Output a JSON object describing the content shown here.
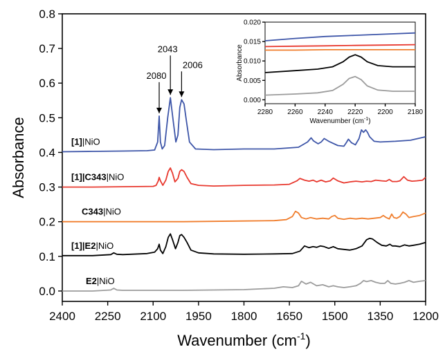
{
  "chart_data": [
    {
      "type": "line",
      "title": "",
      "xlabel": "Wavenumber (cm",
      "xlabel_sup": "-1",
      "xlabel_end": ")",
      "ylabel": "Absorbance",
      "xlim": [
        2400,
        1200
      ],
      "ylim": [
        -0.03,
        0.8
      ],
      "x_ticks": [
        2400,
        2250,
        2100,
        1950,
        1800,
        1650,
        1500,
        1350,
        1200
      ],
      "x_tick_labels": [
        "2400",
        "2250",
        "2100",
        "1950",
        "1800",
        "1650",
        "1500",
        "1350",
        "1200"
      ],
      "y_ticks": [
        0.0,
        0.1,
        0.2,
        0.3,
        0.4,
        0.5,
        0.6,
        0.7,
        0.8
      ],
      "y_tick_labels": [
        "0.0",
        "0.1",
        "0.2",
        "0.3",
        "0.4",
        "0.5",
        "0.6",
        "0.7",
        "0.8"
      ],
      "grid": false,
      "series": [
        {
          "label_bold": "[1]",
          "label_rest": "|NiO",
          "color": "#3d55a8",
          "x": [
            2400,
            2300,
            2200,
            2120,
            2095,
            2085,
            2080,
            2076,
            2070,
            2062,
            2052,
            2043,
            2035,
            2025,
            2018,
            2012,
            2006,
            1998,
            1990,
            1980,
            1960,
            1900,
            1800,
            1700,
            1620,
            1590,
            1578,
            1570,
            1555,
            1545,
            1535,
            1520,
            1490,
            1470,
            1462,
            1455,
            1445,
            1432,
            1420,
            1412,
            1405,
            1398,
            1392,
            1385,
            1370,
            1350,
            1300,
            1250,
            1200
          ],
          "y": [
            0.402,
            0.403,
            0.404,
            0.405,
            0.407,
            0.43,
            0.505,
            0.43,
            0.41,
            0.42,
            0.5,
            0.558,
            0.5,
            0.43,
            0.45,
            0.53,
            0.552,
            0.54,
            0.49,
            0.43,
            0.41,
            0.408,
            0.41,
            0.41,
            0.415,
            0.43,
            0.442,
            0.433,
            0.425,
            0.43,
            0.44,
            0.432,
            0.42,
            0.418,
            0.428,
            0.438,
            0.428,
            0.422,
            0.44,
            0.465,
            0.458,
            0.465,
            0.458,
            0.445,
            0.432,
            0.43,
            0.432,
            0.435,
            0.445
          ]
        },
        {
          "label_bold": "[1]|C343",
          "label_rest": "|NiO",
          "color": "#e8382e",
          "x": [
            2400,
            2300,
            2200,
            2100,
            2090,
            2083,
            2080,
            2076,
            2068,
            2058,
            2050,
            2043,
            2036,
            2028,
            2018,
            2012,
            2006,
            1998,
            1988,
            1975,
            1950,
            1900,
            1800,
            1700,
            1650,
            1625,
            1615,
            1600,
            1585,
            1572,
            1560,
            1545,
            1530,
            1515,
            1505,
            1490,
            1470,
            1450,
            1430,
            1410,
            1395,
            1380,
            1365,
            1345,
            1330,
            1320,
            1310,
            1295,
            1285,
            1272,
            1260,
            1245,
            1230,
            1210,
            1200
          ],
          "y": [
            0.3,
            0.3,
            0.301,
            0.302,
            0.305,
            0.318,
            0.328,
            0.318,
            0.305,
            0.32,
            0.345,
            0.355,
            0.34,
            0.315,
            0.325,
            0.345,
            0.35,
            0.345,
            0.328,
            0.31,
            0.305,
            0.303,
            0.305,
            0.306,
            0.308,
            0.318,
            0.325,
            0.32,
            0.317,
            0.32,
            0.315,
            0.32,
            0.315,
            0.318,
            0.326,
            0.318,
            0.312,
            0.315,
            0.317,
            0.315,
            0.317,
            0.316,
            0.32,
            0.318,
            0.317,
            0.322,
            0.316,
            0.316,
            0.318,
            0.33,
            0.32,
            0.317,
            0.318,
            0.32,
            0.328
          ]
        },
        {
          "label_bold": "C343",
          "label_rest": "|NiO",
          "color": "#f07d2c",
          "x": [
            2400,
            2300,
            2200,
            2100,
            2000,
            1900,
            1800,
            1700,
            1660,
            1640,
            1630,
            1620,
            1610,
            1595,
            1580,
            1560,
            1540,
            1520,
            1510,
            1500,
            1490,
            1470,
            1450,
            1430,
            1410,
            1390,
            1370,
            1350,
            1340,
            1330,
            1320,
            1312,
            1305,
            1295,
            1285,
            1275,
            1265,
            1255,
            1240,
            1220,
            1200
          ],
          "y": [
            0.2,
            0.2,
            0.2,
            0.2,
            0.2,
            0.201,
            0.202,
            0.203,
            0.206,
            0.215,
            0.23,
            0.225,
            0.212,
            0.208,
            0.212,
            0.208,
            0.21,
            0.208,
            0.215,
            0.218,
            0.21,
            0.207,
            0.21,
            0.208,
            0.21,
            0.208,
            0.21,
            0.212,
            0.218,
            0.212,
            0.208,
            0.222,
            0.212,
            0.21,
            0.215,
            0.228,
            0.222,
            0.212,
            0.215,
            0.218,
            0.225
          ]
        },
        {
          "label_bold": "[1]|E2",
          "label_rest": "|NiO",
          "color": "#000000",
          "x": [
            2400,
            2300,
            2240,
            2230,
            2220,
            2200,
            2120,
            2095,
            2085,
            2080,
            2076,
            2068,
            2058,
            2050,
            2043,
            2036,
            2026,
            2018,
            2012,
            2006,
            1998,
            1988,
            1975,
            1950,
            1900,
            1800,
            1700,
            1640,
            1615,
            1600,
            1585,
            1572,
            1560,
            1548,
            1535,
            1520,
            1505,
            1490,
            1470,
            1450,
            1430,
            1410,
            1395,
            1385,
            1375,
            1360,
            1345,
            1330,
            1318,
            1310,
            1300,
            1285,
            1270,
            1255,
            1240,
            1220,
            1200
          ],
          "y": [
            0.102,
            0.102,
            0.105,
            0.11,
            0.106,
            0.105,
            0.108,
            0.112,
            0.122,
            0.135,
            0.118,
            0.108,
            0.128,
            0.155,
            0.165,
            0.148,
            0.122,
            0.14,
            0.16,
            0.163,
            0.155,
            0.14,
            0.118,
            0.11,
            0.107,
            0.106,
            0.107,
            0.108,
            0.115,
            0.13,
            0.125,
            0.128,
            0.126,
            0.13,
            0.128,
            0.123,
            0.128,
            0.122,
            0.12,
            0.118,
            0.122,
            0.13,
            0.148,
            0.152,
            0.15,
            0.14,
            0.132,
            0.13,
            0.135,
            0.13,
            0.13,
            0.128,
            0.133,
            0.13,
            0.132,
            0.135,
            0.14
          ]
        },
        {
          "label_bold": "E2",
          "label_rest": "|NiO",
          "color": "#9b9b9b",
          "x": [
            2400,
            2300,
            2240,
            2230,
            2220,
            2200,
            2100,
            2000,
            1900,
            1800,
            1700,
            1670,
            1640,
            1620,
            1610,
            1595,
            1580,
            1560,
            1540,
            1520,
            1505,
            1490,
            1470,
            1450,
            1430,
            1415,
            1405,
            1395,
            1380,
            1365,
            1350,
            1335,
            1325,
            1315,
            1300,
            1285,
            1270,
            1255,
            1240,
            1220,
            1200
          ],
          "y": [
            0.0,
            0.0,
            0.003,
            0.008,
            0.003,
            0.002,
            0.002,
            0.002,
            0.003,
            0.004,
            0.008,
            0.012,
            0.01,
            0.015,
            0.028,
            0.02,
            0.025,
            0.015,
            0.018,
            0.012,
            0.015,
            0.012,
            0.01,
            0.012,
            0.015,
            0.022,
            0.03,
            0.027,
            0.03,
            0.025,
            0.022,
            0.022,
            0.03,
            0.022,
            0.02,
            0.022,
            0.025,
            0.03,
            0.025,
            0.028,
            0.03
          ]
        }
      ],
      "annotations": [
        {
          "text": "2080",
          "x": 2080,
          "y": 0.505
        },
        {
          "text": "2043",
          "x": 2043,
          "y": 0.558
        },
        {
          "text": "2006",
          "x": 2006,
          "y": 0.552
        }
      ]
    },
    {
      "type": "line",
      "title": "",
      "xlabel": "Wavenumber (cm",
      "xlabel_sup": "-1",
      "xlabel_end": ")",
      "ylabel": "Absorbance",
      "xlim": [
        2280,
        2180
      ],
      "ylim": [
        -0.001,
        0.02
      ],
      "x_ticks": [
        2280,
        2260,
        2240,
        2220,
        2200,
        2180
      ],
      "x_tick_labels": [
        "2280",
        "2260",
        "2240",
        "2220",
        "2200",
        "2180"
      ],
      "y_ticks": [
        0.0,
        0.005,
        0.01,
        0.015,
        0.02
      ],
      "y_tick_labels": [
        "0.000",
        "0.005",
        "0.010",
        "0.015",
        "0.020"
      ],
      "grid": false,
      "series": [
        {
          "color": "#3d55a8",
          "x": [
            2280,
            2260,
            2240,
            2220,
            2200,
            2180
          ],
          "y": [
            0.0152,
            0.0158,
            0.0163,
            0.0166,
            0.0169,
            0.0172
          ]
        },
        {
          "color": "#e8382e",
          "x": [
            2280,
            2260,
            2240,
            2220,
            2200,
            2180
          ],
          "y": [
            0.0137,
            0.0138,
            0.0139,
            0.014,
            0.0141,
            0.0142
          ]
        },
        {
          "color": "#f07d2c",
          "x": [
            2280,
            2260,
            2240,
            2220,
            2200,
            2180
          ],
          "y": [
            0.0128,
            0.0128,
            0.0129,
            0.0129,
            0.0129,
            0.0129
          ]
        },
        {
          "color": "#000000",
          "x": [
            2280,
            2260,
            2245,
            2235,
            2228,
            2224,
            2220,
            2216,
            2212,
            2205,
            2195,
            2180
          ],
          "y": [
            0.007,
            0.0075,
            0.0079,
            0.0085,
            0.0098,
            0.011,
            0.0116,
            0.011,
            0.0098,
            0.0088,
            0.0085,
            0.0085
          ]
        },
        {
          "color": "#9b9b9b",
          "x": [
            2280,
            2260,
            2245,
            2235,
            2228,
            2224,
            2220,
            2216,
            2212,
            2205,
            2195,
            2180
          ],
          "y": [
            0.0012,
            0.0015,
            0.0018,
            0.0024,
            0.004,
            0.0055,
            0.006,
            0.0052,
            0.0036,
            0.0025,
            0.0022,
            0.0022
          ]
        }
      ]
    }
  ]
}
